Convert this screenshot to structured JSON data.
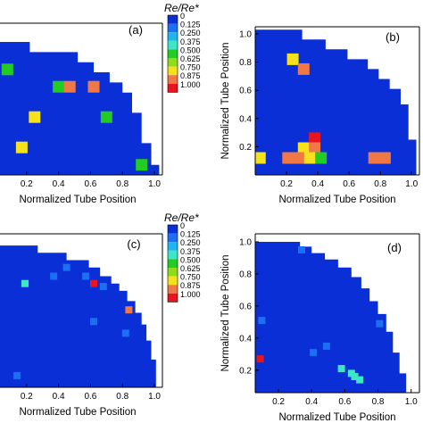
{
  "legend_title": "Re/Re*",
  "chart_data": [
    {
      "type": "heatmap",
      "panel_label": "(a)",
      "xlabel": "Normalized Tube Position",
      "ylabel": "",
      "xlim": [
        0.0,
        1.05
      ],
      "ylim": [
        0.0,
        1.05
      ],
      "xticks": [
        "0.2",
        "0.4",
        "0.6",
        "0.8",
        "1.0"
      ],
      "yticks": [],
      "colorbar": {
        "title": "Re/Re*",
        "levels": [
          "0",
          "0.125",
          "0.250",
          "0.375",
          "0.500",
          "0.625",
          "0.750",
          "0.875",
          "1.000"
        ],
        "colors": [
          "#0a2fd6",
          "#1d6ff2",
          "#1fb6f0",
          "#3ee6c8",
          "#22cc22",
          "#8fdc1a",
          "#f5e21a",
          "#f07846",
          "#e8141e"
        ]
      },
      "domain_boundary": [
        [
          0.0,
          0.92
        ],
        [
          0.22,
          0.92
        ],
        [
          0.22,
          0.85
        ],
        [
          0.52,
          0.85
        ],
        [
          0.52,
          0.78
        ],
        [
          0.62,
          0.78
        ],
        [
          0.62,
          0.71
        ],
        [
          0.72,
          0.71
        ],
        [
          0.72,
          0.64
        ],
        [
          0.8,
          0.64
        ],
        [
          0.8,
          0.57
        ],
        [
          0.86,
          0.57
        ],
        [
          0.86,
          0.43
        ],
        [
          0.92,
          0.43
        ],
        [
          0.92,
          0.22
        ],
        [
          0.98,
          0.22
        ],
        [
          0.98,
          0.07
        ],
        [
          1.03,
          0.07
        ],
        [
          1.03,
          0.0
        ],
        [
          0.0,
          0.0
        ]
      ],
      "highlighted_cells": [
        {
          "x": 0.08,
          "y": 0.73,
          "value": 0.5
        },
        {
          "x": 0.4,
          "y": 0.61,
          "value": 0.5
        },
        {
          "x": 0.47,
          "y": 0.61,
          "value": 0.875
        },
        {
          "x": 0.62,
          "y": 0.61,
          "value": 0.875
        },
        {
          "x": 0.25,
          "y": 0.4,
          "value": 0.75
        },
        {
          "x": 0.7,
          "y": 0.4,
          "value": 0.5
        },
        {
          "x": 0.17,
          "y": 0.19,
          "value": 0.75
        },
        {
          "x": 0.92,
          "y": 0.07,
          "value": 0.5
        }
      ]
    },
    {
      "type": "heatmap",
      "panel_label": "(b)",
      "xlabel": "Normalized Tube Position",
      "ylabel": "Normalized Tube Position",
      "xlim": [
        0.0,
        1.05
      ],
      "ylim": [
        0.0,
        1.05
      ],
      "xticks": [
        "0.2",
        "0.4",
        "0.6",
        "0.8",
        "1.0"
      ],
      "yticks": [
        "0.2",
        "0.4",
        "0.6",
        "0.8",
        "1.0"
      ],
      "domain_boundary": [
        [
          0.0,
          1.03
        ],
        [
          0.3,
          1.03
        ],
        [
          0.3,
          0.96
        ],
        [
          0.45,
          0.96
        ],
        [
          0.45,
          0.89
        ],
        [
          0.59,
          0.89
        ],
        [
          0.59,
          0.82
        ],
        [
          0.72,
          0.82
        ],
        [
          0.72,
          0.75
        ],
        [
          0.79,
          0.75
        ],
        [
          0.79,
          0.68
        ],
        [
          0.86,
          0.68
        ],
        [
          0.86,
          0.61
        ],
        [
          0.93,
          0.61
        ],
        [
          0.93,
          0.5
        ],
        [
          0.98,
          0.5
        ],
        [
          0.98,
          0.25
        ],
        [
          1.03,
          0.25
        ],
        [
          1.03,
          0.0
        ],
        [
          0.0,
          0.0
        ]
      ],
      "highlighted_cells": [
        {
          "x": 0.24,
          "y": 0.82,
          "value": 0.75
        },
        {
          "x": 0.31,
          "y": 0.75,
          "value": 0.875
        },
        {
          "x": 0.38,
          "y": 0.26,
          "value": 1.0
        },
        {
          "x": 0.31,
          "y": 0.19,
          "value": 0.75
        },
        {
          "x": 0.38,
          "y": 0.19,
          "value": 0.875
        },
        {
          "x": 0.03,
          "y": 0.12,
          "value": 0.75
        },
        {
          "x": 0.21,
          "y": 0.12,
          "value": 0.875
        },
        {
          "x": 0.28,
          "y": 0.12,
          "value": 0.875
        },
        {
          "x": 0.35,
          "y": 0.12,
          "value": 0.75
        },
        {
          "x": 0.42,
          "y": 0.12,
          "value": 0.5
        },
        {
          "x": 0.76,
          "y": 0.12,
          "value": 0.875
        },
        {
          "x": 0.83,
          "y": 0.12,
          "value": 0.875
        }
      ]
    },
    {
      "type": "heatmap",
      "panel_label": "(c)",
      "xlabel": "Normalized Tube Position",
      "ylabel": "",
      "xlim": [
        0.0,
        1.05
      ],
      "ylim": [
        0.0,
        1.05
      ],
      "xticks": [
        "0.2",
        "0.4",
        "0.6",
        "0.8",
        "1.0"
      ],
      "yticks": [],
      "colorbar": {
        "title": "Re/Re*",
        "levels": [
          "0",
          "0.125",
          "0.250",
          "0.375",
          "0.500",
          "0.625",
          "0.750",
          "0.875",
          "1.000"
        ],
        "colors": [
          "#0a2fd6",
          "#1d6ff2",
          "#1fb6f0",
          "#3ee6c8",
          "#22cc22",
          "#8fdc1a",
          "#f5e21a",
          "#f07846",
          "#e8141e"
        ]
      },
      "domain_boundary": [
        [
          0.0,
          0.97
        ],
        [
          0.27,
          0.97
        ],
        [
          0.27,
          0.92
        ],
        [
          0.45,
          0.92
        ],
        [
          0.45,
          0.87
        ],
        [
          0.59,
          0.87
        ],
        [
          0.59,
          0.82
        ],
        [
          0.66,
          0.82
        ],
        [
          0.66,
          0.76
        ],
        [
          0.73,
          0.76
        ],
        [
          0.73,
          0.71
        ],
        [
          0.78,
          0.71
        ],
        [
          0.78,
          0.66
        ],
        [
          0.83,
          0.66
        ],
        [
          0.83,
          0.59
        ],
        [
          0.88,
          0.59
        ],
        [
          0.88,
          0.51
        ],
        [
          0.92,
          0.51
        ],
        [
          0.92,
          0.43
        ],
        [
          0.95,
          0.43
        ],
        [
          0.95,
          0.32
        ],
        [
          0.98,
          0.32
        ],
        [
          0.98,
          0.19
        ],
        [
          1.01,
          0.19
        ],
        [
          1.01,
          0.0
        ],
        [
          0.0,
          0.0
        ]
      ],
      "highlighted_cells": [
        {
          "x": 0.45,
          "y": 0.82,
          "value": 0.125
        },
        {
          "x": 0.37,
          "y": 0.76,
          "value": 0.125
        },
        {
          "x": 0.57,
          "y": 0.76,
          "value": 0.125
        },
        {
          "x": 0.19,
          "y": 0.71,
          "value": 0.375
        },
        {
          "x": 0.62,
          "y": 0.71,
          "value": 1.0
        },
        {
          "x": 0.68,
          "y": 0.69,
          "value": 0.125
        },
        {
          "x": 0.84,
          "y": 0.53,
          "value": 0.875
        },
        {
          "x": 0.62,
          "y": 0.45,
          "value": 0.125
        },
        {
          "x": 0.82,
          "y": 0.37,
          "value": 0.125
        },
        {
          "x": 0.14,
          "y": 0.08,
          "value": 0.125
        }
      ]
    },
    {
      "type": "heatmap",
      "panel_label": "(d)",
      "xlabel": "Normalized Tube Position",
      "ylabel": "Normalized Tube Position",
      "xlim": [
        0.06,
        1.05
      ],
      "ylim": [
        0.06,
        1.05
      ],
      "xticks": [
        "0.2",
        "0.4",
        "0.6",
        "0.8",
        "1.0"
      ],
      "yticks": [
        "0.2",
        "0.4",
        "0.6",
        "0.8",
        "1.0"
      ],
      "domain_boundary": [
        [
          0.06,
          1.0
        ],
        [
          0.33,
          1.0
        ],
        [
          0.33,
          0.97
        ],
        [
          0.4,
          0.97
        ],
        [
          0.4,
          0.93
        ],
        [
          0.48,
          0.93
        ],
        [
          0.48,
          0.89
        ],
        [
          0.56,
          0.89
        ],
        [
          0.56,
          0.84
        ],
        [
          0.64,
          0.84
        ],
        [
          0.64,
          0.78
        ],
        [
          0.7,
          0.78
        ],
        [
          0.7,
          0.71
        ],
        [
          0.75,
          0.71
        ],
        [
          0.75,
          0.63
        ],
        [
          0.8,
          0.63
        ],
        [
          0.8,
          0.55
        ],
        [
          0.85,
          0.55
        ],
        [
          0.85,
          0.44
        ],
        [
          0.89,
          0.44
        ],
        [
          0.89,
          0.31
        ],
        [
          0.93,
          0.31
        ],
        [
          0.93,
          0.18
        ],
        [
          0.97,
          0.18
        ],
        [
          0.97,
          0.06
        ],
        [
          0.06,
          0.06
        ]
      ],
      "highlighted_cells": [
        {
          "x": 0.34,
          "y": 0.95,
          "value": 0.125
        },
        {
          "x": 0.1,
          "y": 0.51,
          "value": 0.125
        },
        {
          "x": 0.81,
          "y": 0.49,
          "value": 0.125
        },
        {
          "x": 0.49,
          "y": 0.35,
          "value": 0.125
        },
        {
          "x": 0.41,
          "y": 0.31,
          "value": 0.125
        },
        {
          "x": 0.09,
          "y": 0.27,
          "value": 1.0
        },
        {
          "x": 0.58,
          "y": 0.21,
          "value": 0.375
        },
        {
          "x": 0.64,
          "y": 0.18,
          "value": 0.375
        },
        {
          "x": 0.66,
          "y": 0.16,
          "value": 0.375
        },
        {
          "x": 0.69,
          "y": 0.14,
          "value": 0.375
        }
      ]
    }
  ]
}
